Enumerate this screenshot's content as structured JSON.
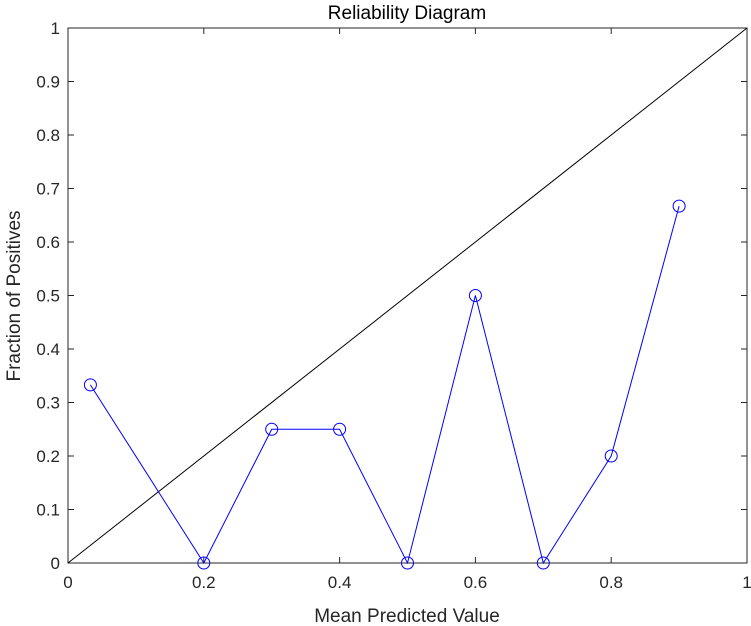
{
  "chart_data": {
    "type": "line",
    "title": "Reliability Diagram",
    "xlabel": "Mean Predicted Value",
    "ylabel": "Fraction of Positives",
    "xlim": [
      0,
      1
    ],
    "ylim": [
      0,
      1
    ],
    "x_ticks": [
      "0",
      "0.2",
      "0.4",
      "0.6",
      "0.8",
      "1"
    ],
    "y_ticks": [
      "0",
      "0.1",
      "0.2",
      "0.3",
      "0.4",
      "0.5",
      "0.6",
      "0.7",
      "0.8",
      "0.9",
      "1"
    ],
    "grid": false,
    "legend": "none",
    "reference_line": {
      "x": [
        0,
        1
      ],
      "y": [
        0,
        1
      ],
      "color": "#000000"
    },
    "series": [
      {
        "x": [
          0.033,
          0.2,
          0.3,
          0.4,
          0.5,
          0.6,
          0.7,
          0.8,
          0.9
        ],
        "y": [
          0.333,
          0.0,
          0.25,
          0.25,
          0.0,
          0.5,
          0.0,
          0.2,
          0.667
        ],
        "color": "#0000ff",
        "marker": "circle"
      }
    ]
  }
}
